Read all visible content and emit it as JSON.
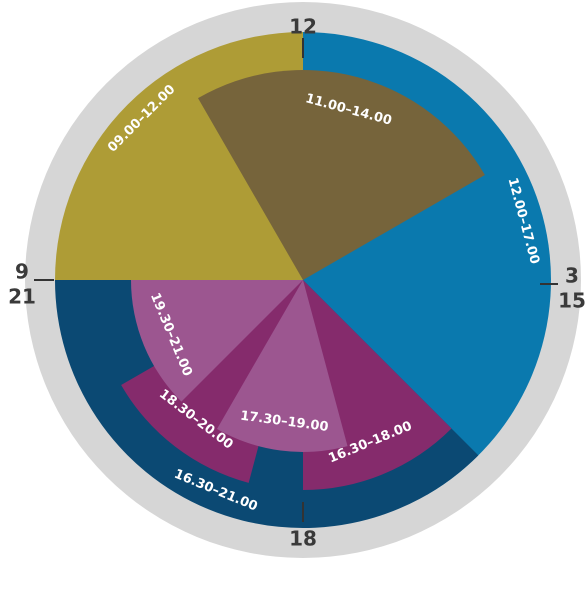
{
  "colors": {
    "background": "#ffffff",
    "ring": "#d6d6d6",
    "tick": "#333333",
    "label_text": "#ffffff",
    "tick_text": "#3a3a3a"
  },
  "chart_data": {
    "type": "pie",
    "hours_per_turn": 12,
    "clock_labels": [
      {
        "id": "top",
        "text": "12"
      },
      {
        "id": "right-upper",
        "text": "3"
      },
      {
        "id": "right-lower",
        "text": "15"
      },
      {
        "id": "left-upper",
        "text": "9"
      },
      {
        "id": "left-lower",
        "text": "21"
      },
      {
        "id": "bottom",
        "text": "18"
      }
    ],
    "segments": [
      {
        "id": "09-12",
        "label": "09.00–12.00",
        "start": 9,
        "end": 12,
        "ring": "outer",
        "color": "#ae9c36"
      },
      {
        "id": "12-17",
        "label": "12.00–17.00",
        "start": 12,
        "end": 17,
        "ring": "outer",
        "color": "#0a79ae"
      },
      {
        "id": "16-21",
        "label": "16.30–21.00",
        "start": 16.5,
        "end": 21,
        "ring": "outer",
        "color": "#0b4973"
      },
      {
        "id": "11-14",
        "label": "11.00–14.00",
        "start": 11,
        "end": 14,
        "ring": "middle",
        "color": "#76643b"
      },
      {
        "id": "16-18",
        "label": "16.30–18.00",
        "start": 16.5,
        "end": 18,
        "ring": "middle",
        "color": "#852b6c"
      },
      {
        "id": "18-20",
        "label": "18.30–20.00",
        "start": 18.5,
        "end": 20,
        "ring": "middle",
        "color": "#852b6c"
      },
      {
        "id": "17-19",
        "label": "17.30–19.00",
        "start": 17.5,
        "end": 19,
        "ring": "inner",
        "color": "#9c5690"
      },
      {
        "id": "19-21",
        "label": "19.30–21.00",
        "start": 19.5,
        "end": 21,
        "ring": "inner",
        "color": "#9c5690"
      }
    ]
  }
}
